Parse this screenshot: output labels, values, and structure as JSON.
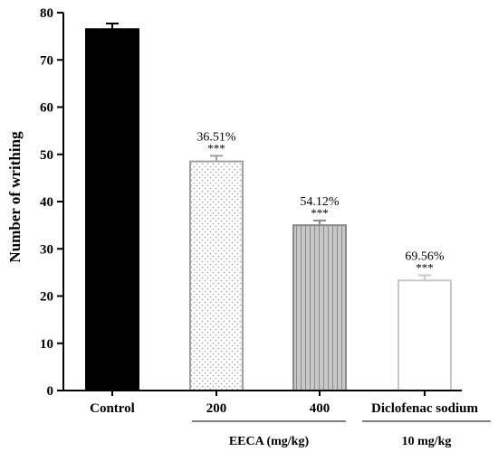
{
  "chart_data": {
    "type": "bar",
    "ylabel": "Number of writhing",
    "ylim": [
      0,
      80
    ],
    "yticks": [
      0,
      10,
      20,
      30,
      40,
      50,
      60,
      70,
      80
    ],
    "grid": false,
    "categories": [
      "Control",
      "200",
      "400",
      "Diclofenac sodium"
    ],
    "values": [
      76.5,
      48.5,
      35.0,
      23.3
    ],
    "errors": [
      1.2,
      1.2,
      1.0,
      1.1
    ],
    "percent_labels": [
      "",
      "36.51%",
      "54.12%",
      "69.56%"
    ],
    "significance": [
      "",
      "***",
      "***",
      "***"
    ],
    "bar_styles": [
      "solid-black",
      "dotted",
      "vertical-stripes",
      "white"
    ],
    "group_labels": [
      {
        "text": "EECA (mg/kg)",
        "categories": [
          1,
          2
        ]
      },
      {
        "text": "10 mg/kg",
        "categories": [
          3
        ]
      }
    ]
  }
}
